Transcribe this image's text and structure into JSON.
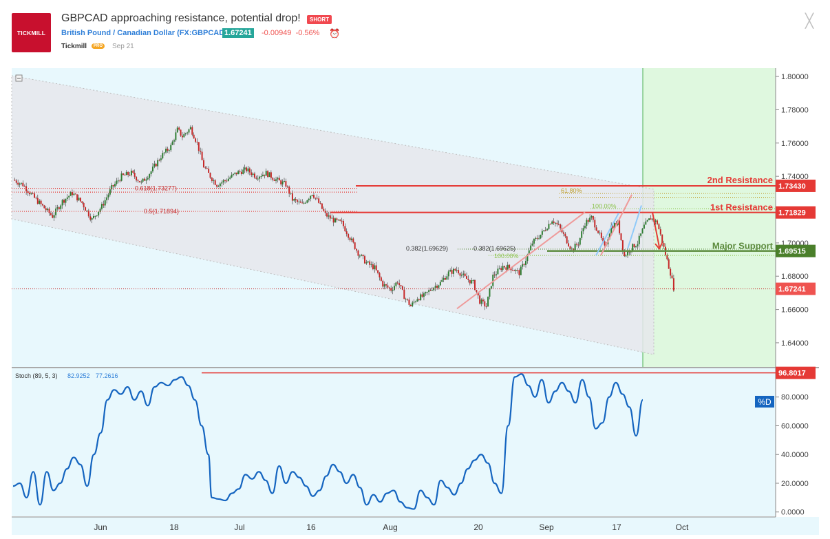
{
  "header": {
    "logo_text": "TICKMILL",
    "title": "GBPCAD approaching resistance, potential drop!",
    "badge": "SHORT",
    "symbol_name": "British Pound / Canadian Dollar",
    "symbol_ticker": "(FX:GBPCAD)",
    "last_price": "1.67241",
    "change": "-0.00949",
    "change_pct": "-0.56%",
    "author": "Tickmill",
    "author_badge": "PRO",
    "date": "Sep 21",
    "close_glyph": "╳"
  },
  "colors": {
    "bg": "#e8f8fd",
    "green_zone": "#dff8df",
    "channel": "#e8e8ec",
    "up": "#2e7d32",
    "down": "#c62828",
    "resistance": "#e53935",
    "support": "#5b8a3c",
    "stoch_line": "#1565c0"
  },
  "chart_data": [
    {
      "type": "candlestick",
      "symbol": "GBPCAD",
      "ylim": [
        1.625,
        1.805
      ],
      "y_ticks": [
        "1.80000",
        "1.78000",
        "1.76000",
        "1.74000",
        "1.72000",
        "1.70000",
        "1.68000",
        "1.66000",
        "1.64000"
      ],
      "x_ticks": [
        "Jun",
        "18",
        "Jul",
        "16",
        "Aug",
        "20",
        "Sep",
        "17",
        "Oct"
      ],
      "close_path": [
        [
          0,
          1.738
        ],
        [
          6,
          1.735
        ],
        [
          12,
          1.728
        ],
        [
          18,
          1.722
        ],
        [
          24,
          1.716
        ],
        [
          30,
          1.725
        ],
        [
          36,
          1.73
        ],
        [
          42,
          1.724
        ],
        [
          48,
          1.714
        ],
        [
          54,
          1.722
        ],
        [
          60,
          1.733
        ],
        [
          66,
          1.74
        ],
        [
          72,
          1.742
        ],
        [
          78,
          1.736
        ],
        [
          84,
          1.743
        ],
        [
          90,
          1.752
        ],
        [
          96,
          1.758
        ],
        [
          100,
          1.768
        ],
        [
          103,
          1.764
        ],
        [
          108,
          1.769
        ],
        [
          112,
          1.76
        ],
        [
          116,
          1.746
        ],
        [
          120,
          1.74
        ],
        [
          124,
          1.735
        ],
        [
          130,
          1.738
        ],
        [
          136,
          1.742
        ],
        [
          142,
          1.744
        ],
        [
          148,
          1.74
        ],
        [
          154,
          1.742
        ],
        [
          160,
          1.738
        ],
        [
          166,
          1.735
        ],
        [
          170,
          1.726
        ],
        [
          176,
          1.723
        ],
        [
          182,
          1.73
        ],
        [
          186,
          1.724
        ],
        [
          190,
          1.717
        ],
        [
          196,
          1.713
        ],
        [
          200,
          1.712
        ],
        [
          205,
          1.703
        ],
        [
          210,
          1.694
        ],
        [
          215,
          1.688
        ],
        [
          220,
          1.685
        ],
        [
          225,
          1.675
        ],
        [
          230,
          1.672
        ],
        [
          234,
          1.677
        ],
        [
          238,
          1.668
        ],
        [
          242,
          1.662
        ],
        [
          246,
          1.667
        ],
        [
          250,
          1.668
        ],
        [
          255,
          1.673
        ],
        [
          260,
          1.676
        ],
        [
          265,
          1.682
        ],
        [
          270,
          1.684
        ],
        [
          275,
          1.679
        ],
        [
          280,
          1.676
        ],
        [
          284,
          1.665
        ],
        [
          288,
          1.662
        ],
        [
          292,
          1.68
        ],
        [
          298,
          1.686
        ],
        [
          303,
          1.685
        ],
        [
          308,
          1.682
        ],
        [
          312,
          1.69
        ],
        [
          316,
          1.7
        ],
        [
          322,
          1.706
        ],
        [
          328,
          1.714
        ],
        [
          332,
          1.71
        ],
        [
          336,
          1.703
        ],
        [
          340,
          1.696
        ],
        [
          344,
          1.7
        ],
        [
          348,
          1.712
        ],
        [
          352,
          1.715
        ],
        [
          356,
          1.707
        ],
        [
          360,
          1.697
        ],
        [
          364,
          1.71
        ],
        [
          368,
          1.712
        ],
        [
          372,
          1.692
        ],
        [
          376,
          1.697
        ],
        [
          380,
          1.7
        ],
        [
          384,
          1.71
        ],
        [
          388,
          1.715
        ],
        [
          392,
          1.712
        ],
        [
          396,
          1.697
        ],
        [
          400,
          1.682
        ],
        [
          402,
          1.673
        ]
      ],
      "lines": [
        {
          "label": "2nd Resistance",
          "price_label": "1.73430",
          "y": 1.7343
        },
        {
          "label": "1st Resistance",
          "price_label": "1.71829",
          "y": 1.71829
        },
        {
          "label": "Major Support",
          "price_label": "1.69515",
          "y": 1.69515
        },
        {
          "label": "",
          "price_label": "1.67241",
          "y": 1.67241
        }
      ],
      "fib_labels": [
        {
          "text": "0.618(1.73277)",
          "y": 1.73277
        },
        {
          "text": "0.5(1.71894)",
          "y": 1.71894
        },
        {
          "text": "0.382(1.69629)",
          "y": 1.69629
        },
        {
          "text": "0.382(1.69625)",
          "y": 1.69625
        },
        {
          "text": "100.00%",
          "y": 1.6925
        },
        {
          "text": "100.00%",
          "y": 1.7205
        },
        {
          "text": "61.80%",
          "y": 1.7297
        }
      ]
    },
    {
      "type": "line",
      "title": "Stoch (89, 5, 3)",
      "legend_values": [
        "82.9252",
        "77.2616"
      ],
      "indicator_label": "%D",
      "ylim": [
        -3,
        100
      ],
      "y_ticks": [
        "80.0000",
        "60.0000",
        "40.0000",
        "20.0000",
        "0.0000"
      ],
      "level_label": "96.8017",
      "level": 96.8,
      "series": [
        {
          "values": [
            [
              0,
              18
            ],
            [
              4,
              20
            ],
            [
              8,
              10
            ],
            [
              12,
              28
            ],
            [
              16,
              5
            ],
            [
              20,
              28
            ],
            [
              24,
              15
            ],
            [
              28,
              20
            ],
            [
              32,
              30
            ],
            [
              36,
              38
            ],
            [
              40,
              33
            ],
            [
              44,
              18
            ],
            [
              48,
              40
            ],
            [
              52,
              55
            ],
            [
              56,
              78
            ],
            [
              60,
              85
            ],
            [
              64,
              82
            ],
            [
              68,
              87
            ],
            [
              72,
              78
            ],
            [
              76,
              84
            ],
            [
              80,
              74
            ],
            [
              84,
              87
            ],
            [
              88,
              90
            ],
            [
              92,
              88
            ],
            [
              96,
              92
            ],
            [
              100,
              94
            ],
            [
              104,
              88
            ],
            [
              108,
              78
            ],
            [
              112,
              60
            ],
            [
              116,
              40
            ],
            [
              118,
              10
            ],
            [
              122,
              9
            ],
            [
              126,
              8
            ],
            [
              130,
              13
            ],
            [
              134,
              16
            ],
            [
              138,
              26
            ],
            [
              142,
              23
            ],
            [
              146,
              28
            ],
            [
              150,
              22
            ],
            [
              154,
              13
            ],
            [
              158,
              32
            ],
            [
              162,
              20
            ],
            [
              166,
              28
            ],
            [
              170,
              24
            ],
            [
              174,
              18
            ],
            [
              178,
              11
            ],
            [
              182,
              15
            ],
            [
              186,
              25
            ],
            [
              190,
              33
            ],
            [
              194,
              28
            ],
            [
              198,
              20
            ],
            [
              202,
              26
            ],
            [
              206,
              17
            ],
            [
              210,
              5
            ],
            [
              214,
              12
            ],
            [
              218,
              7
            ],
            [
              222,
              13
            ],
            [
              226,
              15
            ],
            [
              230,
              7
            ],
            [
              234,
              3
            ],
            [
              238,
              2
            ],
            [
              242,
              15
            ],
            [
              246,
              10
            ],
            [
              250,
              5
            ],
            [
              254,
              22
            ],
            [
              258,
              17
            ],
            [
              262,
              12
            ],
            [
              266,
              20
            ],
            [
              270,
              30
            ],
            [
              274,
              36
            ],
            [
              278,
              40
            ],
            [
              282,
              34
            ],
            [
              286,
              20
            ],
            [
              290,
              13
            ],
            [
              294,
              60
            ],
            [
              298,
              94
            ],
            [
              302,
              96
            ],
            [
              306,
              88
            ],
            [
              310,
              80
            ],
            [
              314,
              92
            ],
            [
              318,
              76
            ],
            [
              322,
              84
            ],
            [
              326,
              90
            ],
            [
              330,
              84
            ],
            [
              334,
              76
            ],
            [
              338,
              92
            ],
            [
              342,
              80
            ],
            [
              346,
              58
            ],
            [
              350,
              62
            ],
            [
              354,
              80
            ],
            [
              358,
              90
            ],
            [
              362,
              82
            ],
            [
              366,
              73
            ],
            [
              370,
              53
            ],
            [
              374,
              78
            ]
          ]
        }
      ]
    }
  ]
}
